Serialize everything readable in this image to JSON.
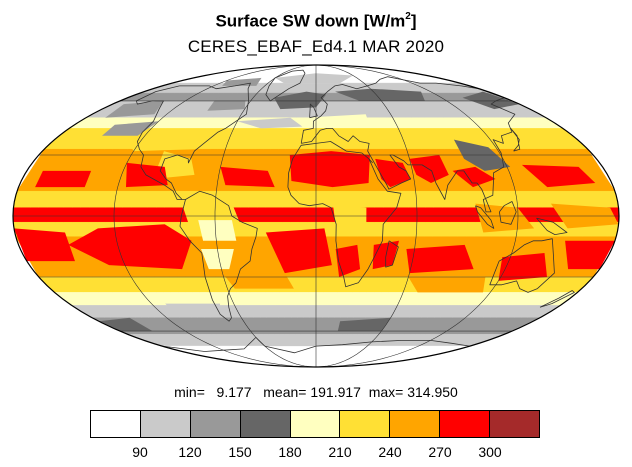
{
  "title": {
    "main": "Surface SW down [W/m",
    "superscript": "2",
    "close": "]"
  },
  "subtitle": "CERES_EBAF_Ed4.1 MAR 2020",
  "stats": {
    "text": "min=   9.177   mean= 191.917  max= 314.950",
    "min": 9.177,
    "mean": 191.917,
    "max": 314.95
  },
  "map": {
    "projection": "mollweide",
    "variable": "Surface SW down",
    "units": "W/m2",
    "dataset": "CERES_EBAF_Ed4.1",
    "period": "MAR 2020",
    "graticule": true
  },
  "colorbar": {
    "colors": [
      "#ffffff",
      "#cacaca",
      "#999999",
      "#666666",
      "#ffffc0",
      "#ffe034",
      "#ffa500",
      "#ff0000",
      "#a52a2a"
    ],
    "levels": [
      90,
      120,
      150,
      180,
      210,
      240,
      270,
      300
    ],
    "labels": [
      "90",
      "120",
      "150",
      "180",
      "210",
      "240",
      "270",
      "300"
    ]
  }
}
